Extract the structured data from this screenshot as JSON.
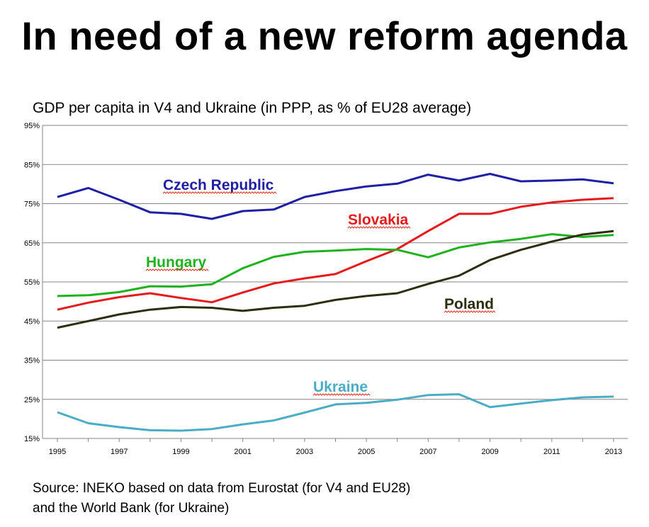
{
  "slide": {
    "title": "In need of a new reform agenda",
    "source_line1": "Source: INEKO based on data from Eurostat (for V4 and EU28)",
    "source_line2": "and the World Bank (for Ukraine)"
  },
  "chart_data": {
    "type": "line",
    "title": "GDP per capita in V4 and Ukraine (in PPP, as % of EU28 average)",
    "xlabel": "",
    "ylabel": "",
    "x": [
      1995,
      1996,
      1997,
      1998,
      1999,
      2000,
      2001,
      2002,
      2003,
      2004,
      2005,
      2006,
      2007,
      2008,
      2009,
      2010,
      2011,
      2012,
      2013
    ],
    "x_tick_labels": [
      "1995",
      "1997",
      "1999",
      "2001",
      "2003",
      "2005",
      "2007",
      "2009",
      "2011",
      "2013"
    ],
    "y_tick_values": [
      15,
      25,
      35,
      45,
      55,
      65,
      75,
      85,
      95
    ],
    "y_tick_labels": [
      "15%",
      "25%",
      "35%",
      "45%",
      "55%",
      "65%",
      "75%",
      "85%",
      "95%"
    ],
    "ylim": [
      15,
      95
    ],
    "grid": true,
    "legend": "none (series labelled directly on chart)",
    "series": [
      {
        "name": "Czech Republic",
        "color": "#1f1fa5",
        "values": [
          76.7,
          79.0,
          76.0,
          72.8,
          72.4,
          71.1,
          73.1,
          73.5,
          76.7,
          78.2,
          79.4,
          80.1,
          82.4,
          80.9,
          82.6,
          80.7,
          80.9,
          81.2,
          80.2
        ]
      },
      {
        "name": "Slovakia",
        "color": "#e51b1b",
        "values": [
          47.9,
          49.7,
          51.1,
          52.1,
          50.9,
          49.8,
          52.3,
          54.6,
          55.9,
          57.0,
          60.3,
          63.4,
          68.0,
          72.4,
          72.4,
          74.2,
          75.3,
          76.0,
          76.4
        ]
      },
      {
        "name": "Hungary",
        "color": "#1fb21f",
        "values": [
          51.4,
          51.6,
          52.4,
          53.9,
          53.8,
          54.4,
          58.5,
          61.4,
          62.7,
          63.0,
          63.4,
          63.2,
          61.3,
          63.8,
          65.1,
          66.0,
          67.2,
          66.5,
          67.0
        ]
      },
      {
        "name": "Poland",
        "color": "#2d2d0f",
        "values": [
          43.3,
          45.0,
          46.7,
          47.9,
          48.6,
          48.4,
          47.6,
          48.4,
          48.9,
          50.4,
          51.4,
          52.1,
          54.5,
          56.6,
          60.6,
          63.2,
          65.3,
          67.1,
          68.0
        ]
      },
      {
        "name": "Ukraine",
        "color": "#4bacc6",
        "values": [
          21.7,
          18.9,
          17.9,
          17.1,
          17.0,
          17.4,
          18.6,
          19.6,
          21.6,
          23.7,
          24.1,
          24.9,
          26.1,
          26.3,
          23.0,
          23.9,
          24.8,
          25.5,
          25.7
        ]
      }
    ],
    "series_labels": [
      "Czech Republic",
      "Slovakia",
      "Hungary",
      "Poland",
      "Ukraine"
    ]
  }
}
